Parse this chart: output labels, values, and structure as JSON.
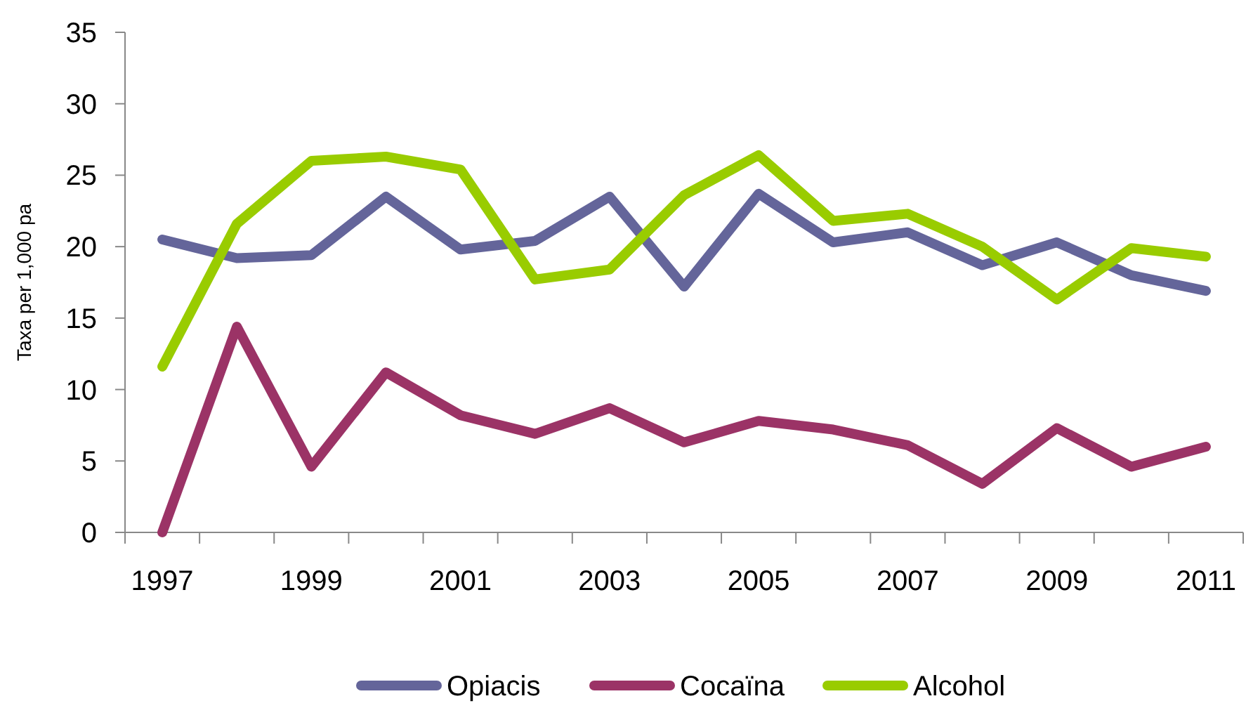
{
  "chart_data": {
    "type": "line",
    "ylabel": "Taxa per 1,000 pa",
    "categories": [
      "1997",
      null,
      "1999",
      null,
      "2001",
      null,
      "2003",
      null,
      "2005",
      null,
      "2007",
      null,
      "2009",
      null,
      "2011"
    ],
    "series": [
      {
        "name": "Opiacis",
        "color": "#64659a",
        "values": [
          20.5,
          19.2,
          19.4,
          23.5,
          19.8,
          20.4,
          23.5,
          17.2,
          23.7,
          20.3,
          21.0,
          18.7,
          20.3,
          18.0,
          16.9
        ]
      },
      {
        "name": "Cocaïna",
        "color": "#9b3366",
        "values": [
          0,
          14.4,
          4.6,
          11.2,
          8.2,
          6.9,
          8.7,
          6.3,
          7.8,
          7.2,
          6.1,
          3.4,
          7.3,
          4.6,
          6.0
        ]
      },
      {
        "name": "Alcohol",
        "color": "#99cc00",
        "values": [
          11.6,
          21.6,
          26.0,
          26.3,
          25.4,
          17.7,
          18.4,
          23.6,
          26.4,
          21.8,
          22.3,
          20.0,
          16.3,
          19.9,
          19.3
        ]
      }
    ],
    "ylim": [
      0,
      35
    ],
    "yticks": [
      0,
      5,
      10,
      15,
      20,
      25,
      30,
      35
    ],
    "grid": false,
    "legend": "bottom",
    "line_style": "solid",
    "marker": "none"
  }
}
